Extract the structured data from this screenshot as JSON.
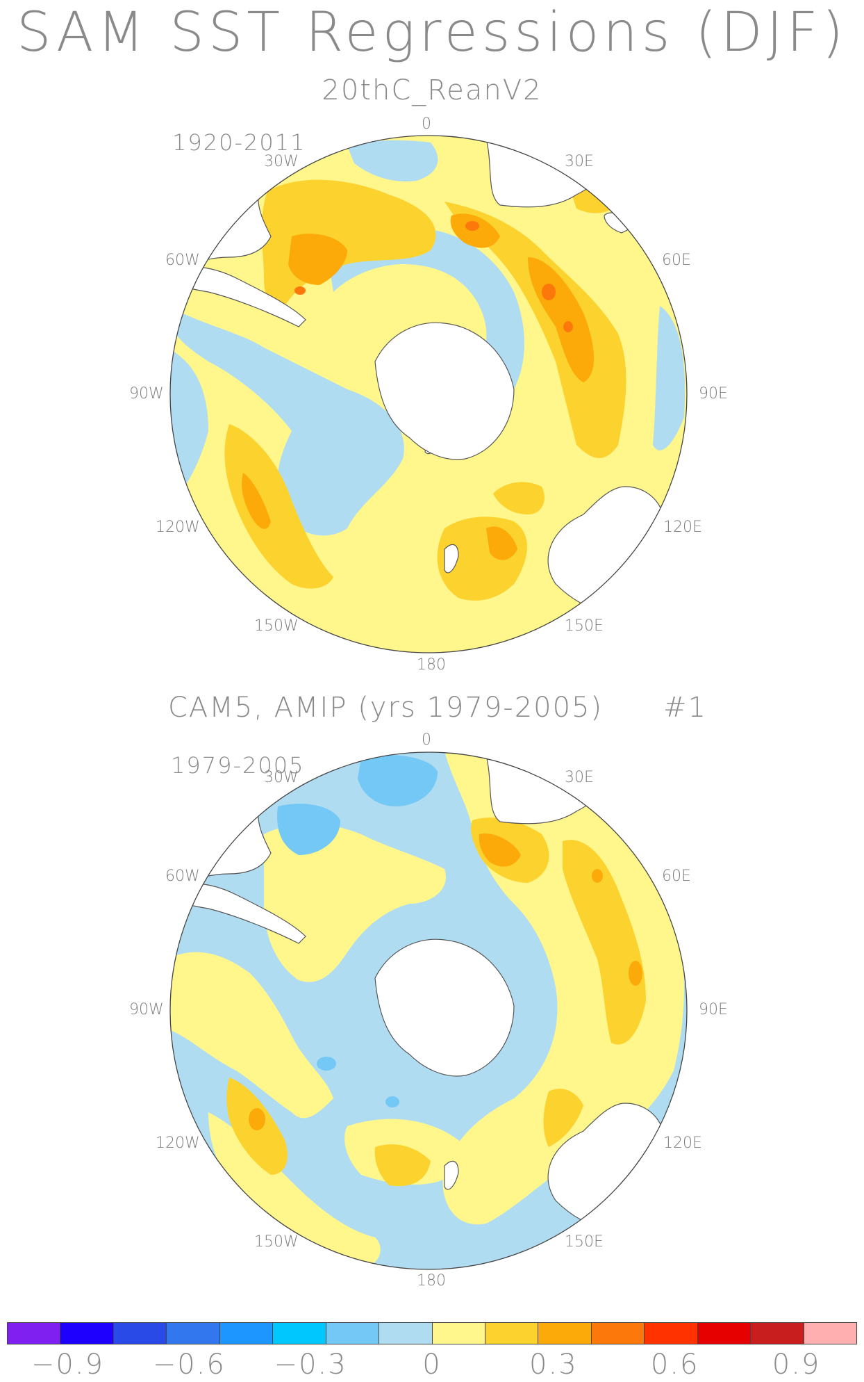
{
  "title": "SAM SST Regressions (DJF)",
  "panels": [
    {
      "title": "20thC_ReanV2",
      "run_label": "",
      "period": "1920-2011",
      "lon_labels": [
        "0",
        "30E",
        "60E",
        "90E",
        "120E",
        "150E",
        "180",
        "150W",
        "120W",
        "90W",
        "60W",
        "30W"
      ]
    },
    {
      "title": "CAM5, AMIP (yrs 1979-2005)",
      "run_label": "#1",
      "period": "1979-2005",
      "lon_labels": [
        "0",
        "30E",
        "60E",
        "90E",
        "120E",
        "150E",
        "180",
        "150W",
        "120W",
        "90W",
        "60W",
        "30W"
      ]
    }
  ],
  "colorbar": {
    "colors": [
      "#8020f0",
      "#1e00ff",
      "#2a4ae8",
      "#3377ee",
      "#1e96ff",
      "#00c8ff",
      "#73c8f5",
      "#b0dcf2",
      "#fff68c",
      "#fcd22e",
      "#fcaa0a",
      "#fc780a",
      "#ff3200",
      "#e60000",
      "#c81e1e",
      "#ffafaf"
    ],
    "labels": [
      "-0.9",
      "-0.6",
      "-0.3",
      "0",
      "0.3",
      "0.6",
      "0.9"
    ],
    "label_values": [
      -0.9,
      -0.6,
      -0.3,
      0,
      0.3,
      0.6,
      0.9
    ],
    "range": [
      -1.05,
      1.05
    ]
  },
  "palette": {
    "negative_light": "#b0dcf2",
    "negative_medium": "#73c8f5",
    "positive_light": "#fff68c",
    "positive_medium": "#fcd22e",
    "positive_strong": "#fcaa0a",
    "positive_stronger": "#fc780a",
    "land": "#ffffff"
  }
}
